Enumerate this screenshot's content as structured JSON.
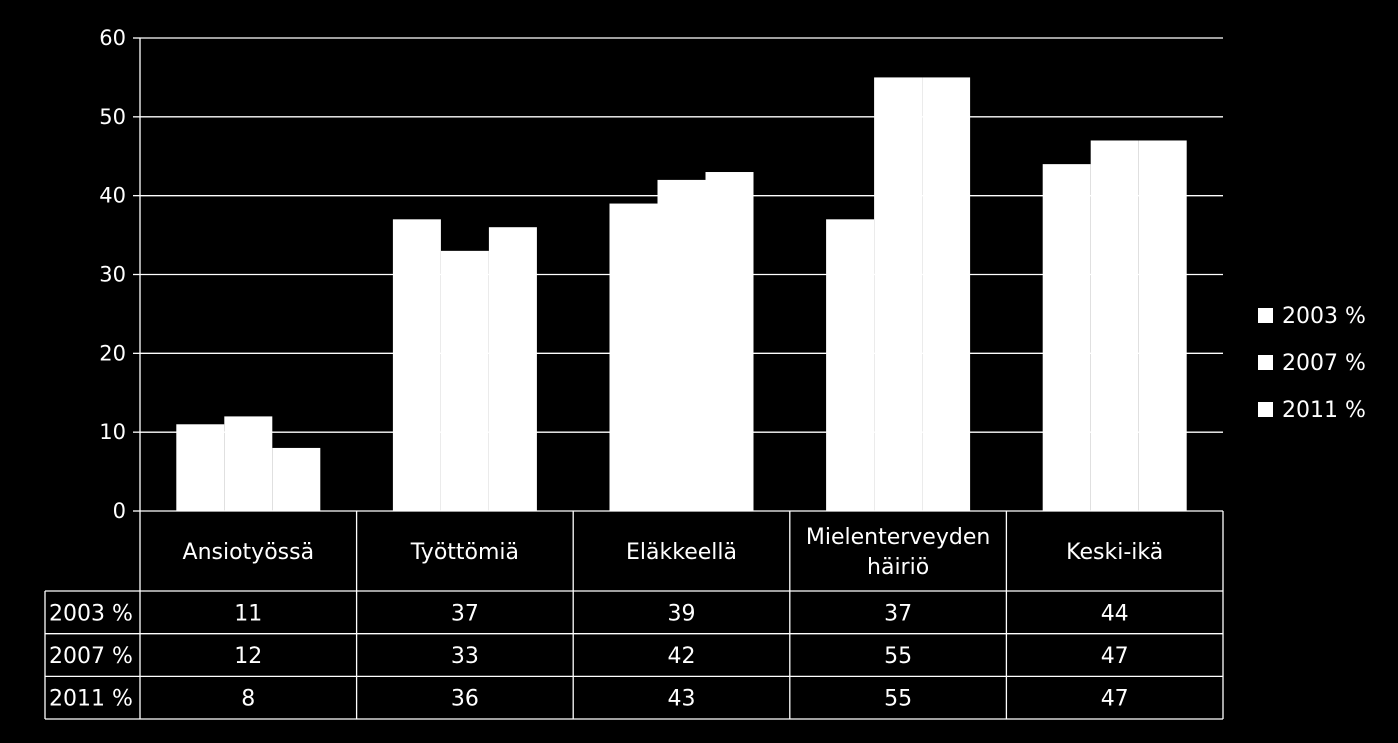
{
  "chart_data": {
    "type": "bar",
    "title": "",
    "xlabel": "",
    "ylabel": "",
    "categories": [
      [
        "Ansiotyössä"
      ],
      [
        "Työttömiä"
      ],
      [
        "Eläkkeellä"
      ],
      [
        "Mielenterveyden",
        "häiriö"
      ],
      [
        "Keski-ikä"
      ]
    ],
    "series": [
      {
        "name": "2003 %",
        "values": [
          11,
          37,
          39,
          37,
          44
        ]
      },
      {
        "name": "2007 %",
        "values": [
          12,
          33,
          42,
          55,
          47
        ]
      },
      {
        "name": "2011 %",
        "values": [
          8,
          36,
          43,
          55,
          47
        ]
      }
    ],
    "ylim": [
      0,
      60
    ],
    "yticks": [
      0,
      10,
      20,
      30,
      40,
      50,
      60
    ],
    "grid": true,
    "legend": "right",
    "data_table": true,
    "colors": {
      "background": "#000000",
      "bars": "#ffffff",
      "text": "#ffffff",
      "grid": "#ffffff"
    }
  }
}
